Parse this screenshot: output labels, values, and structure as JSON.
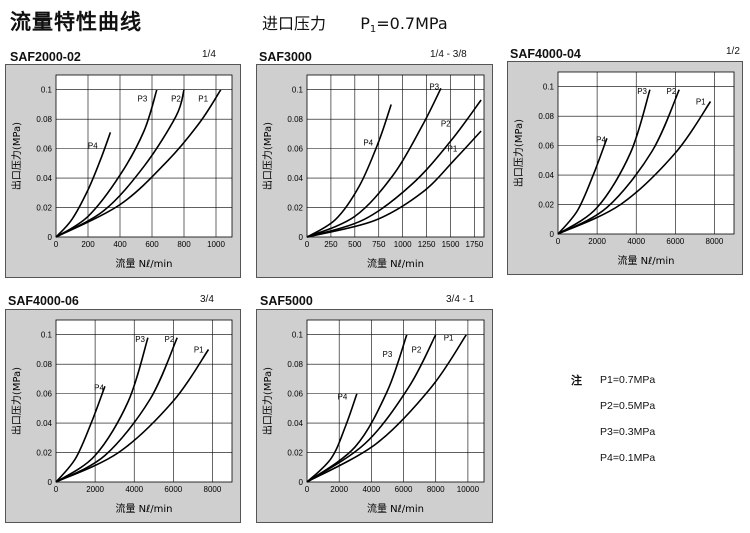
{
  "page": {
    "title": "流量特性曲线",
    "pressure_label": "进口压力",
    "pressure_prefix": "P",
    "pressure_sub": "1",
    "pressure_value": "=0.7MPa"
  },
  "legend": {
    "label": "注",
    "entries": [
      "P1=0.7MPa",
      "P2=0.5MPa",
      "P3=0.3MPa",
      "P4=0.1MPa"
    ]
  },
  "colors": {
    "panel_bg": "#cfcfcf",
    "plot_bg": "#ffffff",
    "curve": "#000000",
    "grid": "#000000"
  },
  "chart_data": [
    {
      "type": "line",
      "model": "SAF2000-02",
      "size": "1/4",
      "xlabel": "流量 Nℓ/min",
      "ylabel": "出口压力(MPa)",
      "xlim": [
        0,
        1100
      ],
      "ylim": [
        0,
        0.11
      ],
      "xticks": [
        "0",
        "200",
        "400",
        "600",
        "800",
        "1000"
      ],
      "xtick_values": [
        0,
        200,
        400,
        600,
        800,
        1000
      ],
      "yticks": [
        "0.02",
        "0.04",
        "0.06",
        "0.08",
        "0.1"
      ],
      "ytick_values": [
        0.02,
        0.04,
        0.06,
        0.08,
        0.1
      ],
      "series": [
        {
          "name": "P4",
          "x": [
            0,
            100,
            200,
            280,
            340
          ],
          "y": [
            0,
            0.012,
            0.032,
            0.053,
            0.071
          ]
        },
        {
          "name": "P3",
          "x": [
            0,
            200,
            400,
            550,
            630
          ],
          "y": [
            0,
            0.014,
            0.042,
            0.072,
            0.1
          ]
        },
        {
          "name": "P2",
          "x": [
            0,
            300,
            550,
            750,
            800
          ],
          "y": [
            0,
            0.018,
            0.048,
            0.082,
            0.1
          ]
        },
        {
          "name": "P1",
          "x": [
            0,
            400,
            700,
            900,
            1030
          ],
          "y": [
            0,
            0.022,
            0.052,
            0.078,
            0.1
          ]
        }
      ],
      "labels": [
        {
          "name": "P4",
          "x": 230,
          "y": 0.06
        },
        {
          "name": "P3",
          "x": 540,
          "y": 0.092
        },
        {
          "name": "P2",
          "x": 750,
          "y": 0.092
        },
        {
          "name": "P1",
          "x": 920,
          "y": 0.092
        }
      ]
    },
    {
      "type": "line",
      "model": "SAF3000",
      "size": "1/4 - 3/8",
      "xlabel": "流量 Nℓ/min",
      "ylabel": "出口压力(MPa)",
      "xlim": [
        0,
        1850
      ],
      "ylim": [
        0,
        0.11
      ],
      "xticks": [
        "0",
        "250",
        "500",
        "750",
        "1000",
        "1250",
        "1500",
        "1750"
      ],
      "xtick_values": [
        0,
        250,
        500,
        750,
        1000,
        1250,
        1500,
        1750
      ],
      "yticks": [
        "0.02",
        "0.04",
        "0.06",
        "0.08",
        "0.1"
      ],
      "ytick_values": [
        0.02,
        0.04,
        0.06,
        0.08,
        0.1
      ],
      "series": [
        {
          "name": "P4",
          "x": [
            0,
            300,
            550,
            750,
            880
          ],
          "y": [
            0,
            0.012,
            0.035,
            0.065,
            0.09
          ]
        },
        {
          "name": "P3",
          "x": [
            0,
            500,
            900,
            1200,
            1400
          ],
          "y": [
            0,
            0.014,
            0.042,
            0.075,
            0.101
          ]
        },
        {
          "name": "P2",
          "x": [
            0,
            600,
            1100,
            1500,
            1820
          ],
          "y": [
            0,
            0.012,
            0.036,
            0.065,
            0.093
          ]
        },
        {
          "name": "P1",
          "x": [
            0,
            700,
            1200,
            1550,
            1820
          ],
          "y": [
            0,
            0.011,
            0.03,
            0.053,
            0.072
          ]
        }
      ],
      "labels": [
        {
          "name": "P4",
          "x": 640,
          "y": 0.062
        },
        {
          "name": "P3",
          "x": 1330,
          "y": 0.1
        },
        {
          "name": "P2",
          "x": 1450,
          "y": 0.075
        },
        {
          "name": "P1",
          "x": 1520,
          "y": 0.058
        }
      ]
    },
    {
      "type": "line",
      "model": "SAF4000-04",
      "size": "1/2",
      "xlabel": "流量 Nℓ/min",
      "ylabel": "出口压力(MPa)",
      "xlim": [
        0,
        9000
      ],
      "ylim": [
        0,
        0.11
      ],
      "xticks": [
        "0",
        "2000",
        "4000",
        "6000",
        "8000"
      ],
      "xtick_values": [
        0,
        2000,
        4000,
        6000,
        8000
      ],
      "yticks": [
        "0.02",
        "0.04",
        "0.06",
        "0.08",
        "0.1"
      ],
      "ytick_values": [
        0.02,
        0.04,
        0.06,
        0.08,
        0.1
      ],
      "series": [
        {
          "name": "P4",
          "x": [
            0,
            1000,
            1800,
            2500
          ],
          "y": [
            0,
            0.016,
            0.04,
            0.065
          ]
        },
        {
          "name": "P3",
          "x": [
            0,
            2000,
            3700,
            4700
          ],
          "y": [
            0,
            0.018,
            0.055,
            0.098
          ]
        },
        {
          "name": "P2",
          "x": [
            0,
            2500,
            4800,
            6200
          ],
          "y": [
            0,
            0.018,
            0.056,
            0.098
          ]
        },
        {
          "name": "P1",
          "x": [
            0,
            3200,
            6000,
            7800
          ],
          "y": [
            0,
            0.02,
            0.055,
            0.09
          ]
        }
      ],
      "labels": [
        {
          "name": "P4",
          "x": 2200,
          "y": 0.062
        },
        {
          "name": "P3",
          "x": 4300,
          "y": 0.095
        },
        {
          "name": "P2",
          "x": 5800,
          "y": 0.095
        },
        {
          "name": "P1",
          "x": 7300,
          "y": 0.088
        }
      ]
    },
    {
      "type": "line",
      "model": "SAF4000-06",
      "size": "3/4",
      "xlabel": "流量 Nℓ/min",
      "ylabel": "出口压力(MPa)",
      "xlim": [
        0,
        9000
      ],
      "ylim": [
        0,
        0.11
      ],
      "xticks": [
        "0",
        "2000",
        "4000",
        "6000",
        "8000"
      ],
      "xtick_values": [
        0,
        2000,
        4000,
        6000,
        8000
      ],
      "yticks": [
        "0.02",
        "0.04",
        "0.06",
        "0.08",
        "0.1"
      ],
      "ytick_values": [
        0.02,
        0.04,
        0.06,
        0.08,
        0.1
      ],
      "series": [
        {
          "name": "P4",
          "x": [
            0,
            1000,
            1800,
            2500
          ],
          "y": [
            0,
            0.016,
            0.04,
            0.065
          ]
        },
        {
          "name": "P3",
          "x": [
            0,
            2000,
            3700,
            4700
          ],
          "y": [
            0,
            0.018,
            0.055,
            0.098
          ]
        },
        {
          "name": "P2",
          "x": [
            0,
            2500,
            4800,
            6200
          ],
          "y": [
            0,
            0.018,
            0.056,
            0.098
          ]
        },
        {
          "name": "P1",
          "x": [
            0,
            3200,
            6000,
            7800
          ],
          "y": [
            0,
            0.02,
            0.055,
            0.09
          ]
        }
      ],
      "labels": [
        {
          "name": "P4",
          "x": 2200,
          "y": 0.062
        },
        {
          "name": "P3",
          "x": 4300,
          "y": 0.095
        },
        {
          "name": "P2",
          "x": 5800,
          "y": 0.095
        },
        {
          "name": "P1",
          "x": 7300,
          "y": 0.088
        }
      ]
    },
    {
      "type": "line",
      "model": "SAF5000",
      "size": "3/4 - 1",
      "xlabel": "流量 Nℓ/min",
      "ylabel": "出口压力(MPa)",
      "xlim": [
        0,
        11000
      ],
      "ylim": [
        0,
        0.11
      ],
      "xticks": [
        "0",
        "2000",
        "4000",
        "6000",
        "8000",
        "10000"
      ],
      "xtick_values": [
        0,
        2000,
        4000,
        6000,
        8000,
        10000
      ],
      "yticks": [
        "0.02",
        "0.04",
        "0.06",
        "0.08",
        "0.1"
      ],
      "ytick_values": [
        0.02,
        0.04,
        0.06,
        0.08,
        0.1
      ],
      "series": [
        {
          "name": "P4",
          "x": [
            0,
            1500,
            2400,
            3100
          ],
          "y": [
            0,
            0.016,
            0.038,
            0.06
          ]
        },
        {
          "name": "P3",
          "x": [
            0,
            3000,
            5000,
            6200
          ],
          "y": [
            0,
            0.024,
            0.062,
            0.1
          ]
        },
        {
          "name": "P2",
          "x": [
            0,
            3600,
            6300,
            8000
          ],
          "y": [
            0,
            0.026,
            0.064,
            0.1
          ]
        },
        {
          "name": "P1",
          "x": [
            0,
            4300,
            7700,
            9900
          ],
          "y": [
            0,
            0.026,
            0.064,
            0.1
          ]
        }
      ],
      "labels": [
        {
          "name": "P4",
          "x": 2200,
          "y": 0.056
        },
        {
          "name": "P3",
          "x": 5000,
          "y": 0.085
        },
        {
          "name": "P2",
          "x": 6800,
          "y": 0.088
        },
        {
          "name": "P1",
          "x": 8800,
          "y": 0.096
        }
      ]
    }
  ]
}
